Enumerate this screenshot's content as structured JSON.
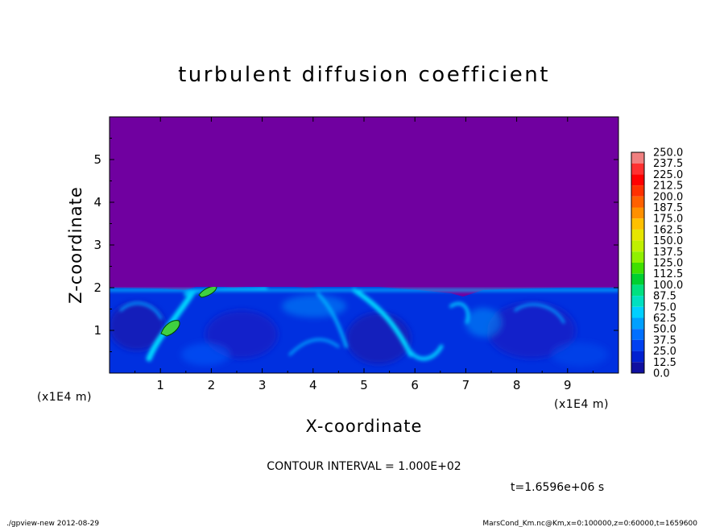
{
  "chart_data": {
    "type": "heatmap",
    "title": "turbulent diffusion coefficient",
    "xlabel": "X-coordinate",
    "ylabel": "Z-coordinate",
    "x_unit": "(x1E4 m)",
    "x_unit_right": "(x1E4 m)",
    "xlim": [
      0,
      10
    ],
    "ylim": [
      0,
      6
    ],
    "x_ticks": [
      "1",
      "2",
      "3",
      "4",
      "5",
      "6",
      "7",
      "8",
      "9"
    ],
    "y_ticks": [
      "1",
      "2",
      "3",
      "4",
      "5"
    ],
    "field": {
      "top_region": {
        "z_from": 2.0,
        "z_to": 6.0,
        "value": 0.0
      },
      "mixed_layer_top": 2.0,
      "mixed_layer_range": [
        12.5,
        100.0
      ],
      "max_patches": [
        {
          "x": 1.2,
          "z": 1.0,
          "value": 112.5
        },
        {
          "x": 1.9,
          "z": 1.95,
          "value": 112.5
        }
      ]
    },
    "colorbar": {
      "levels": [
        "250.0",
        "237.5",
        "225.0",
        "212.5",
        "200.0",
        "187.5",
        "175.0",
        "162.5",
        "150.0",
        "137.5",
        "125.0",
        "112.5",
        "100.0",
        "87.5",
        "75.0",
        "62.5",
        "50.0",
        "37.5",
        "25.0",
        "12.5",
        "0.0"
      ],
      "colors": [
        "#f08080",
        "#ff3030",
        "#ff0000",
        "#ff3000",
        "#ff6000",
        "#ff9000",
        "#ffc000",
        "#e6e600",
        "#c0f000",
        "#90f000",
        "#40e000",
        "#00d030",
        "#00e080",
        "#00e0c0",
        "#00d0ff",
        "#00a0ff",
        "#0070ff",
        "#0040f0",
        "#0020d0",
        "#1010a0",
        "#7000a0"
      ]
    },
    "contour_interval": "CONTOUR INTERVAL = 1.000E+02",
    "time_label": "t=1.6596e+06 s",
    "footer_left": "./gpview-new   2012-08-29",
    "footer_right": "MarsCond_Km.nc@Km,x=0:100000,z=0:60000,t=1659600"
  }
}
